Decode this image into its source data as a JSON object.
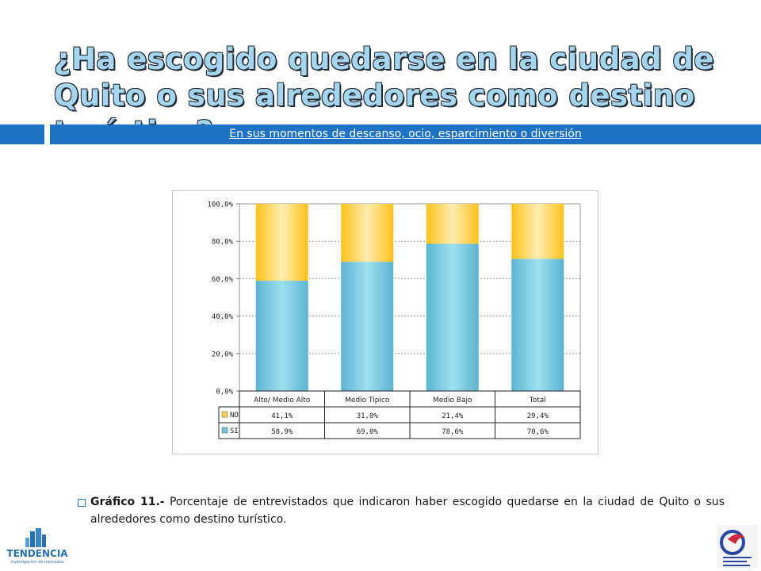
{
  "slide": {
    "title": "¿Ha escogido quedarse en la ciudad de Quito o sus alrededores como destino turístico?",
    "subtitle": "En sus momentos de descanso, ocio, esparcimiento o diversión",
    "caption_bold": "Gráfico 11.-",
    "caption_text": " Porcentaje de entrevistados que indicaron haber escogido quedarse en la ciudad de Quito o sus alrededores como destino turístico.",
    "logo_left_text": "TENDENCIA",
    "logo_left_subtext": "investigación de mercados",
    "colors": {
      "title": "#a6d5ee",
      "band": "#1f73c7",
      "si": "#6fc3dc",
      "no": "#ffd24d"
    }
  },
  "chart_data": {
    "type": "bar",
    "stacked": true,
    "categories": [
      "Alto/ Medio Alto",
      "Medio Tipico",
      "Medio Bajo",
      "Total"
    ],
    "series": [
      {
        "name": "SI",
        "values": [
          58.9,
          69.0,
          78.6,
          70.6
        ],
        "labels": [
          "58,9%",
          "69,0%",
          "78,6%",
          "70,6%"
        ],
        "color": "#6fc3dc"
      },
      {
        "name": "NO",
        "values": [
          41.1,
          31.0,
          21.4,
          29.4
        ],
        "labels": [
          "41,1%",
          "31,0%",
          "21,4%",
          "29,4%"
        ],
        "color": "#ffd24d"
      }
    ],
    "yticks": [
      "0,0%",
      "20,0%",
      "40,0%",
      "60,0%",
      "80,0%",
      "100,0%"
    ],
    "ylim": [
      0,
      100
    ],
    "grid": true,
    "legend": "data-table"
  }
}
